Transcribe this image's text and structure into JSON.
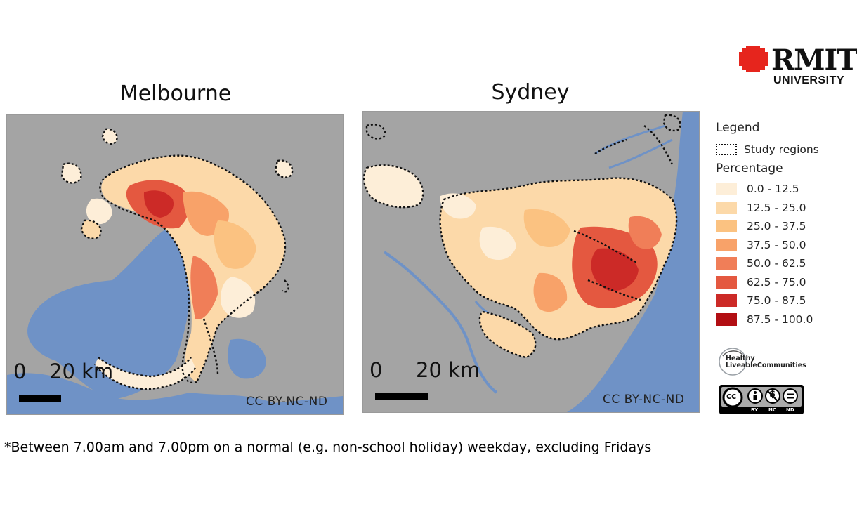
{
  "branding": {
    "logo_word": "RMIT",
    "logo_sub": "UNIVERSITY",
    "logo_color": "#e6251d"
  },
  "maps": [
    {
      "title": "Melbourne",
      "scale_zero": "0",
      "scale_distance": "20 km",
      "attribution": "CC BY-NC-ND"
    },
    {
      "title": "Sydney",
      "scale_zero": "0",
      "scale_distance": "20 km",
      "attribution": "CC BY-NC-ND"
    }
  ],
  "legend": {
    "title": "Legend",
    "study_regions_label": "Study regions",
    "percentage_title": "Percentage",
    "classes": [
      {
        "label": "0.0 - 12.5",
        "color": "#fdeed8"
      },
      {
        "label": "12.5 - 25.0",
        "color": "#fcd9a9"
      },
      {
        "label": "25.0 - 37.5",
        "color": "#fbc281"
      },
      {
        "label": "37.5 - 50.0",
        "color": "#f8a269"
      },
      {
        "label": "50.0 - 62.5",
        "color": "#f07e58"
      },
      {
        "label": "62.5 - 75.0",
        "color": "#e45840"
      },
      {
        "label": "75.0 - 87.5",
        "color": "#cc2a27"
      },
      {
        "label": "87.5 - 100.0",
        "color": "#b20e13"
      }
    ]
  },
  "badges": {
    "hlc_line1": "Healthy",
    "hlc_line2": "LiveableCommunities",
    "cc_symbols": [
      "cc",
      "BY",
      "NC",
      "ND"
    ]
  },
  "colors": {
    "water": "#6f92c6",
    "land": "#a4a4a4"
  },
  "footnote": "*Between 7.00am and 7.00pm on a normal (e.g. non-school holiday) weekday, excluding Fridays"
}
